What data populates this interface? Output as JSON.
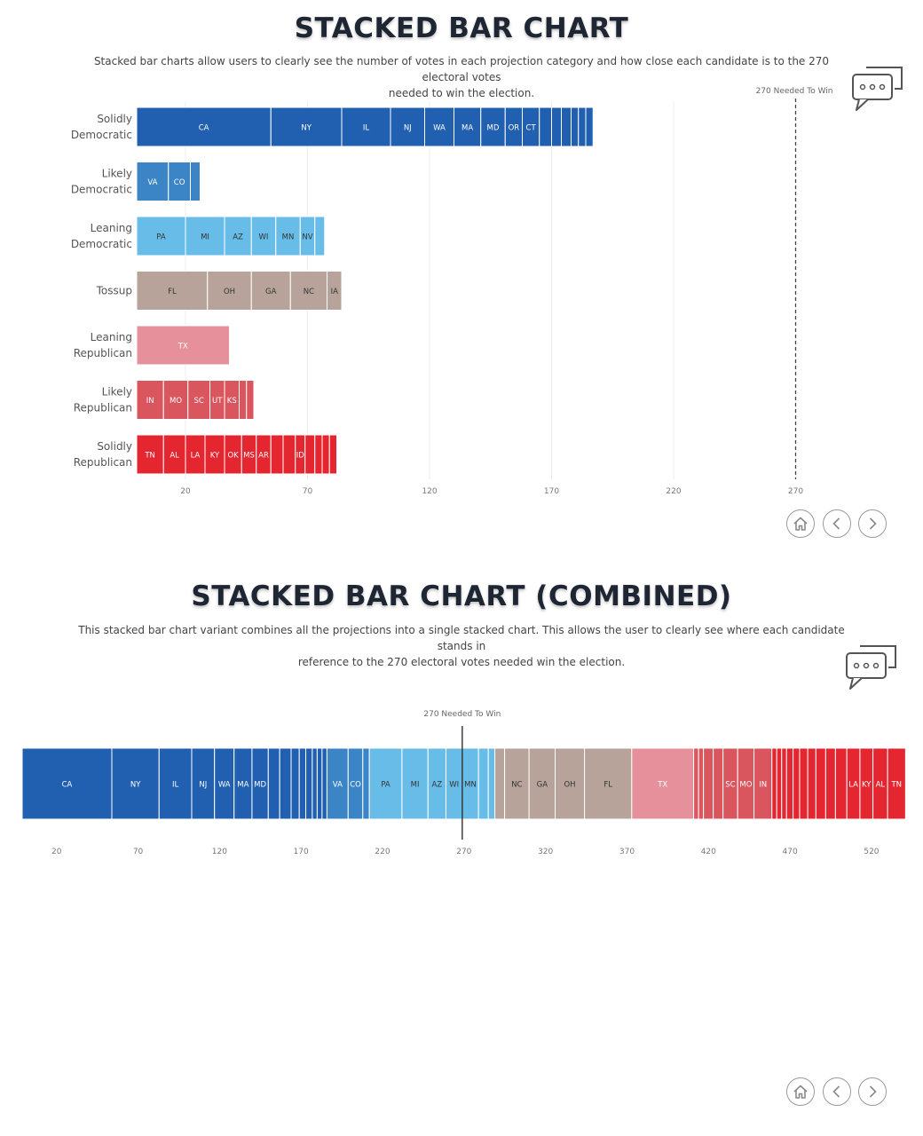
{
  "top": {
    "title": "STACKED BAR CHART",
    "subtitle_line1": "Stacked bar charts allow users to clearly see the number of votes in each projection category and how close each candidate is to the 270 electoral votes",
    "subtitle_line2": "needed to win the election."
  },
  "bottom": {
    "title": "STACKED BAR CHART (COMBINED)",
    "subtitle_line1": "This stacked bar chart variant combines all the projections into a single stacked chart. This allows the user to clearly see where each candidate stands in",
    "subtitle_line2": "reference to the 270 electoral votes needed win the election."
  },
  "icons": [
    "comment-bubbles-icon",
    "home-icon",
    "chevron-left-icon",
    "chevron-right-icon"
  ],
  "chart_data": [
    {
      "type": "bar",
      "orientation": "horizontal",
      "stacked": true,
      "xlim": [
        0,
        280
      ],
      "x_ticks": [
        20,
        70,
        120,
        170,
        220,
        270
      ],
      "grid": true,
      "reference_line": {
        "value": 270,
        "label": "270 Needed To Win"
      },
      "categories": [
        {
          "label_line1": "Solidly",
          "label_line2": "Democratic",
          "color": "#2160b0",
          "segments": [
            {
              "state": "CA",
              "value": 55
            },
            {
              "state": "NY",
              "value": 29
            },
            {
              "state": "IL",
              "value": 20
            },
            {
              "state": "NJ",
              "value": 14
            },
            {
              "state": "WA",
              "value": 12
            },
            {
              "state": "MA",
              "value": 11
            },
            {
              "state": "MD",
              "value": 10
            },
            {
              "state": "OR",
              "value": 7
            },
            {
              "state": "CT",
              "value": 7
            },
            {
              "state": "",
              "value": 5
            },
            {
              "state": "",
              "value": 4
            },
            {
              "state": "",
              "value": 4
            },
            {
              "state": "",
              "value": 3
            },
            {
              "state": "",
              "value": 3
            },
            {
              "state": "",
              "value": 3
            }
          ]
        },
        {
          "label_line1": "Likely",
          "label_line2": "Democratic",
          "color": "#3b84c6",
          "segments": [
            {
              "state": "VA",
              "value": 13
            },
            {
              "state": "CO",
              "value": 9
            },
            {
              "state": "",
              "value": 4
            }
          ]
        },
        {
          "label_line1": "Leaning",
          "label_line2": "Democratic",
          "color": "#68bce8",
          "segments": [
            {
              "state": "PA",
              "value": 20
            },
            {
              "state": "MI",
              "value": 16
            },
            {
              "state": "AZ",
              "value": 11
            },
            {
              "state": "WI",
              "value": 10
            },
            {
              "state": "MN",
              "value": 10
            },
            {
              "state": "NV",
              "value": 6
            },
            {
              "state": "",
              "value": 4
            }
          ]
        },
        {
          "label_line1": "Tossup",
          "label_line2": "",
          "color": "#b8a39b",
          "segments": [
            {
              "state": "FL",
              "value": 29
            },
            {
              "state": "OH",
              "value": 18
            },
            {
              "state": "GA",
              "value": 16
            },
            {
              "state": "NC",
              "value": 15
            },
            {
              "state": "IA",
              "value": 6
            }
          ]
        },
        {
          "label_line1": "Leaning",
          "label_line2": "Republican",
          "color": "#e5909a",
          "segments": [
            {
              "state": "TX",
              "value": 38
            }
          ]
        },
        {
          "label_line1": "Likely",
          "label_line2": "Republican",
          "color": "#d9565f",
          "segments": [
            {
              "state": "IN",
              "value": 11
            },
            {
              "state": "MO",
              "value": 10
            },
            {
              "state": "SC",
              "value": 9
            },
            {
              "state": "UT",
              "value": 6
            },
            {
              "state": "KS",
              "value": 6
            },
            {
              "state": "",
              "value": 3
            },
            {
              "state": "",
              "value": 3
            }
          ]
        },
        {
          "label_line1": "Solidly",
          "label_line2": "Republican",
          "color": "#e3262f",
          "segments": [
            {
              "state": "TN",
              "value": 11
            },
            {
              "state": "AL",
              "value": 9
            },
            {
              "state": "LA",
              "value": 8
            },
            {
              "state": "KY",
              "value": 8
            },
            {
              "state": "OK",
              "value": 7
            },
            {
              "state": "MS",
              "value": 6
            },
            {
              "state": "AR",
              "value": 6
            },
            {
              "state": "",
              "value": 5
            },
            {
              "state": "",
              "value": 5
            },
            {
              "state": "ID",
              "value": 4
            },
            {
              "state": "",
              "value": 4
            },
            {
              "state": "",
              "value": 3
            },
            {
              "state": "",
              "value": 3
            },
            {
              "state": "",
              "value": 3
            }
          ]
        }
      ]
    },
    {
      "type": "bar",
      "orientation": "horizontal",
      "stacked": true,
      "combined": true,
      "xlim": [
        0,
        538
      ],
      "x_ticks": [
        20,
        70,
        120,
        170,
        220,
        270,
        320,
        370,
        420,
        470,
        520
      ],
      "reference_line": {
        "value": 270,
        "label": "270 Needed To Win"
      },
      "segments": [
        {
          "state": "CA",
          "value": 55,
          "color": "#2160b0"
        },
        {
          "state": "NY",
          "value": 29,
          "color": "#2160b0"
        },
        {
          "state": "IL",
          "value": 20,
          "color": "#2160b0"
        },
        {
          "state": "NJ",
          "value": 14,
          "color": "#2160b0"
        },
        {
          "state": "WA",
          "value": 12,
          "color": "#2160b0"
        },
        {
          "state": "MA",
          "value": 11,
          "color": "#2160b0"
        },
        {
          "state": "MD",
          "value": 10,
          "color": "#2160b0"
        },
        {
          "state": "",
          "value": 7,
          "color": "#2160b0"
        },
        {
          "state": "",
          "value": 7,
          "color": "#2160b0"
        },
        {
          "state": "",
          "value": 5,
          "color": "#2160b0"
        },
        {
          "state": "",
          "value": 4,
          "color": "#2160b0"
        },
        {
          "state": "",
          "value": 4,
          "color": "#2160b0"
        },
        {
          "state": "",
          "value": 3,
          "color": "#2160b0"
        },
        {
          "state": "",
          "value": 3,
          "color": "#2160b0"
        },
        {
          "state": "",
          "value": 3,
          "color": "#2160b0"
        },
        {
          "state": "VA",
          "value": 13,
          "color": "#3b84c6"
        },
        {
          "state": "CO",
          "value": 9,
          "color": "#3b84c6"
        },
        {
          "state": "",
          "value": 4,
          "color": "#3b84c6"
        },
        {
          "state": "PA",
          "value": 20,
          "color": "#68bce8"
        },
        {
          "state": "MI",
          "value": 16,
          "color": "#68bce8"
        },
        {
          "state": "AZ",
          "value": 11,
          "color": "#68bce8"
        },
        {
          "state": "WI",
          "value": 10,
          "color": "#68bce8"
        },
        {
          "state": "MN",
          "value": 10,
          "color": "#68bce8"
        },
        {
          "state": "",
          "value": 6,
          "color": "#68bce8"
        },
        {
          "state": "",
          "value": 4,
          "color": "#68bce8"
        },
        {
          "state": "",
          "value": 6,
          "color": "#b8a39b"
        },
        {
          "state": "NC",
          "value": 15,
          "color": "#b8a39b"
        },
        {
          "state": "GA",
          "value": 16,
          "color": "#b8a39b"
        },
        {
          "state": "OH",
          "value": 18,
          "color": "#b8a39b"
        },
        {
          "state": "FL",
          "value": 29,
          "color": "#b8a39b"
        },
        {
          "state": "TX",
          "value": 38,
          "color": "#e5909a"
        },
        {
          "state": "",
          "value": 3,
          "color": "#d9565f"
        },
        {
          "state": "",
          "value": 3,
          "color": "#d9565f"
        },
        {
          "state": "",
          "value": 6,
          "color": "#d9565f"
        },
        {
          "state": "",
          "value": 6,
          "color": "#d9565f"
        },
        {
          "state": "SC",
          "value": 9,
          "color": "#d9565f"
        },
        {
          "state": "MO",
          "value": 10,
          "color": "#d9565f"
        },
        {
          "state": "IN",
          "value": 11,
          "color": "#d9565f"
        },
        {
          "state": "",
          "value": 3,
          "color": "#e3262f"
        },
        {
          "state": "",
          "value": 3,
          "color": "#e3262f"
        },
        {
          "state": "",
          "value": 3,
          "color": "#e3262f"
        },
        {
          "state": "",
          "value": 4,
          "color": "#e3262f"
        },
        {
          "state": "",
          "value": 4,
          "color": "#e3262f"
        },
        {
          "state": "",
          "value": 5,
          "color": "#e3262f"
        },
        {
          "state": "",
          "value": 5,
          "color": "#e3262f"
        },
        {
          "state": "",
          "value": 6,
          "color": "#e3262f"
        },
        {
          "state": "",
          "value": 6,
          "color": "#e3262f"
        },
        {
          "state": "",
          "value": 7,
          "color": "#e3262f"
        },
        {
          "state": "LA",
          "value": 8,
          "color": "#e3262f"
        },
        {
          "state": "KY",
          "value": 8,
          "color": "#e3262f"
        },
        {
          "state": "AL",
          "value": 9,
          "color": "#e3262f"
        },
        {
          "state": "TN",
          "value": 11,
          "color": "#e3262f"
        }
      ]
    }
  ]
}
